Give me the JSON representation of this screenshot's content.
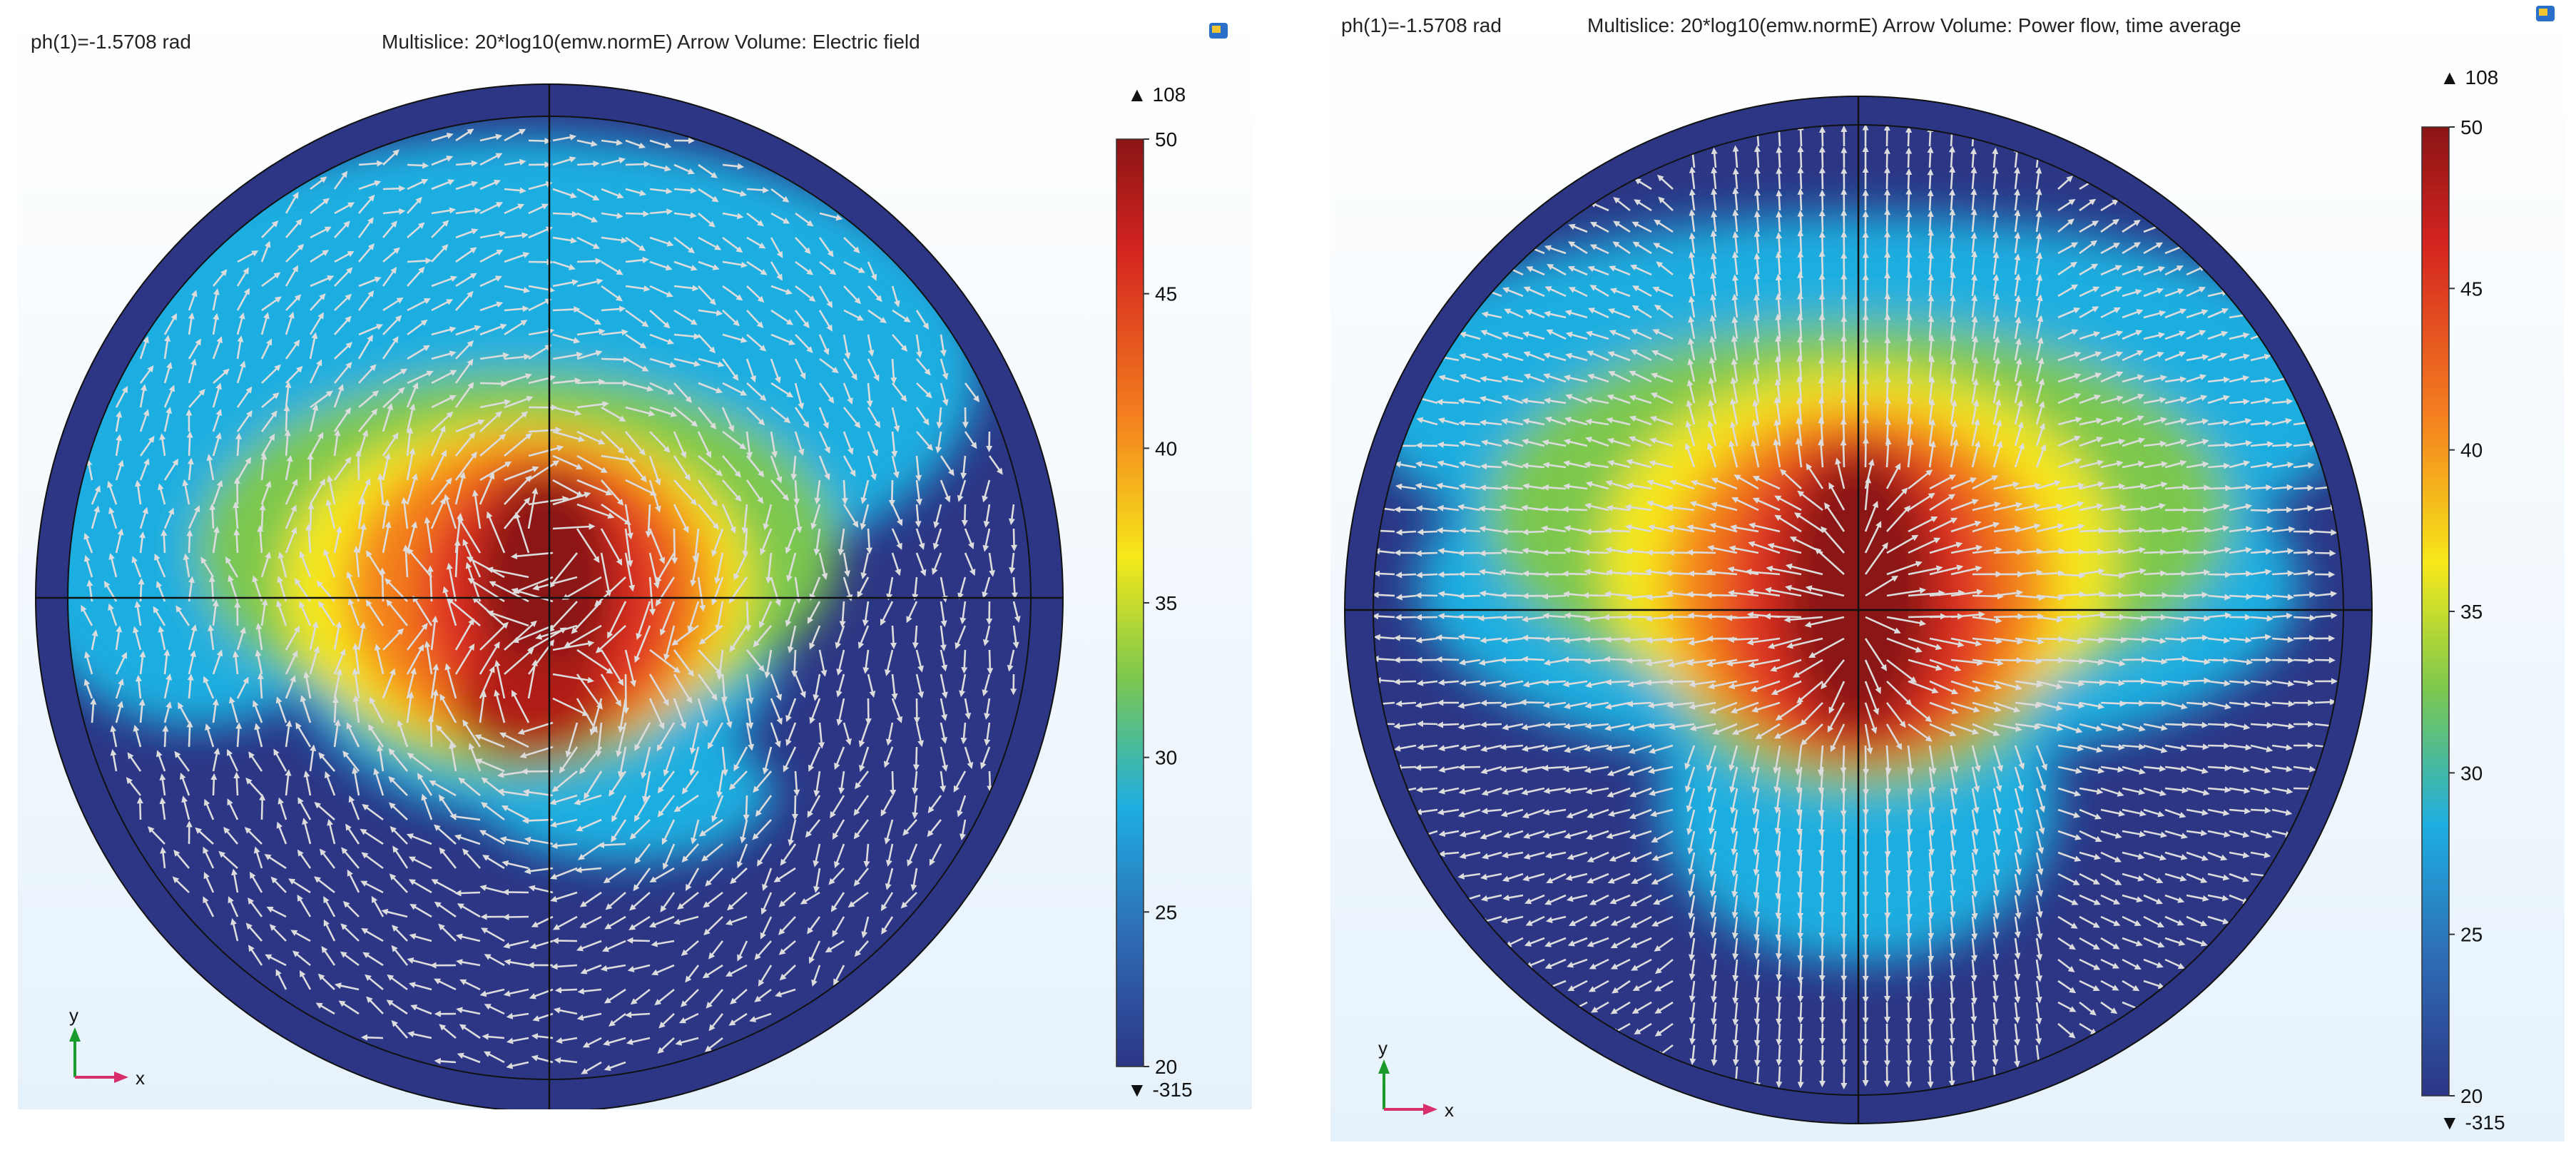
{
  "colors": {
    "background_top": "#ffffff",
    "background_bottom": "#e6f2fb",
    "disk_rim": "#2c3685",
    "field_min": "#2c3685",
    "field_max": "#8a1515",
    "arrow": "#dcdcdc",
    "axis_y": "#1a9a2a",
    "axis_x": "#d82f6a"
  },
  "panels": [
    {
      "phase_label": "ph(1)=-1.5708 rad",
      "title_text": "Multislice: 20*log10(emw.normE)  Arrow Volume: Electric field",
      "colorbar": {
        "max_label": "▲ 108",
        "min_label": "▼ -315",
        "ticks": [
          "50",
          "45",
          "40",
          "35",
          "30",
          "25",
          "20"
        ]
      },
      "axis_y_label": "y",
      "axis_x_label": "x"
    },
    {
      "phase_label": "ph(1)=-1.5708 rad",
      "title_text": "Multislice: 20*log10(emw.normE)  Arrow Volume: Power flow, time average",
      "colorbar": {
        "max_label": "▲ 108",
        "min_label": "▼ -315",
        "ticks": [
          "50",
          "45",
          "40",
          "35",
          "30",
          "25",
          "20"
        ]
      },
      "axis_y_label": "y",
      "axis_x_label": "x"
    }
  ],
  "chart_data": [
    {
      "type": "heatmap",
      "title": "Multislice: 20*log10(emw.normE)  Arrow Volume: Electric field",
      "quantity": "20*log10(emw.normE)",
      "arrow_quantity": "Electric field",
      "phase": "ph(1)=-1.5708 rad",
      "colorbar_range": [
        20,
        50
      ],
      "colorbar_ticks": [
        50,
        45,
        40,
        35,
        30,
        25,
        20
      ],
      "data_max": 108,
      "data_min": -315,
      "axes": [
        "x",
        "y"
      ]
    },
    {
      "type": "heatmap",
      "title": "Multislice: 20*log10(emw.normE)  Arrow Volume: Power flow, time average",
      "quantity": "20*log10(emw.normE)",
      "arrow_quantity": "Power flow, time average",
      "phase": "ph(1)=-1.5708 rad",
      "colorbar_range": [
        20,
        50
      ],
      "colorbar_ticks": [
        50,
        45,
        40,
        35,
        30,
        25,
        20
      ],
      "data_max": 108,
      "data_min": -315,
      "axes": [
        "x",
        "y"
      ]
    }
  ]
}
